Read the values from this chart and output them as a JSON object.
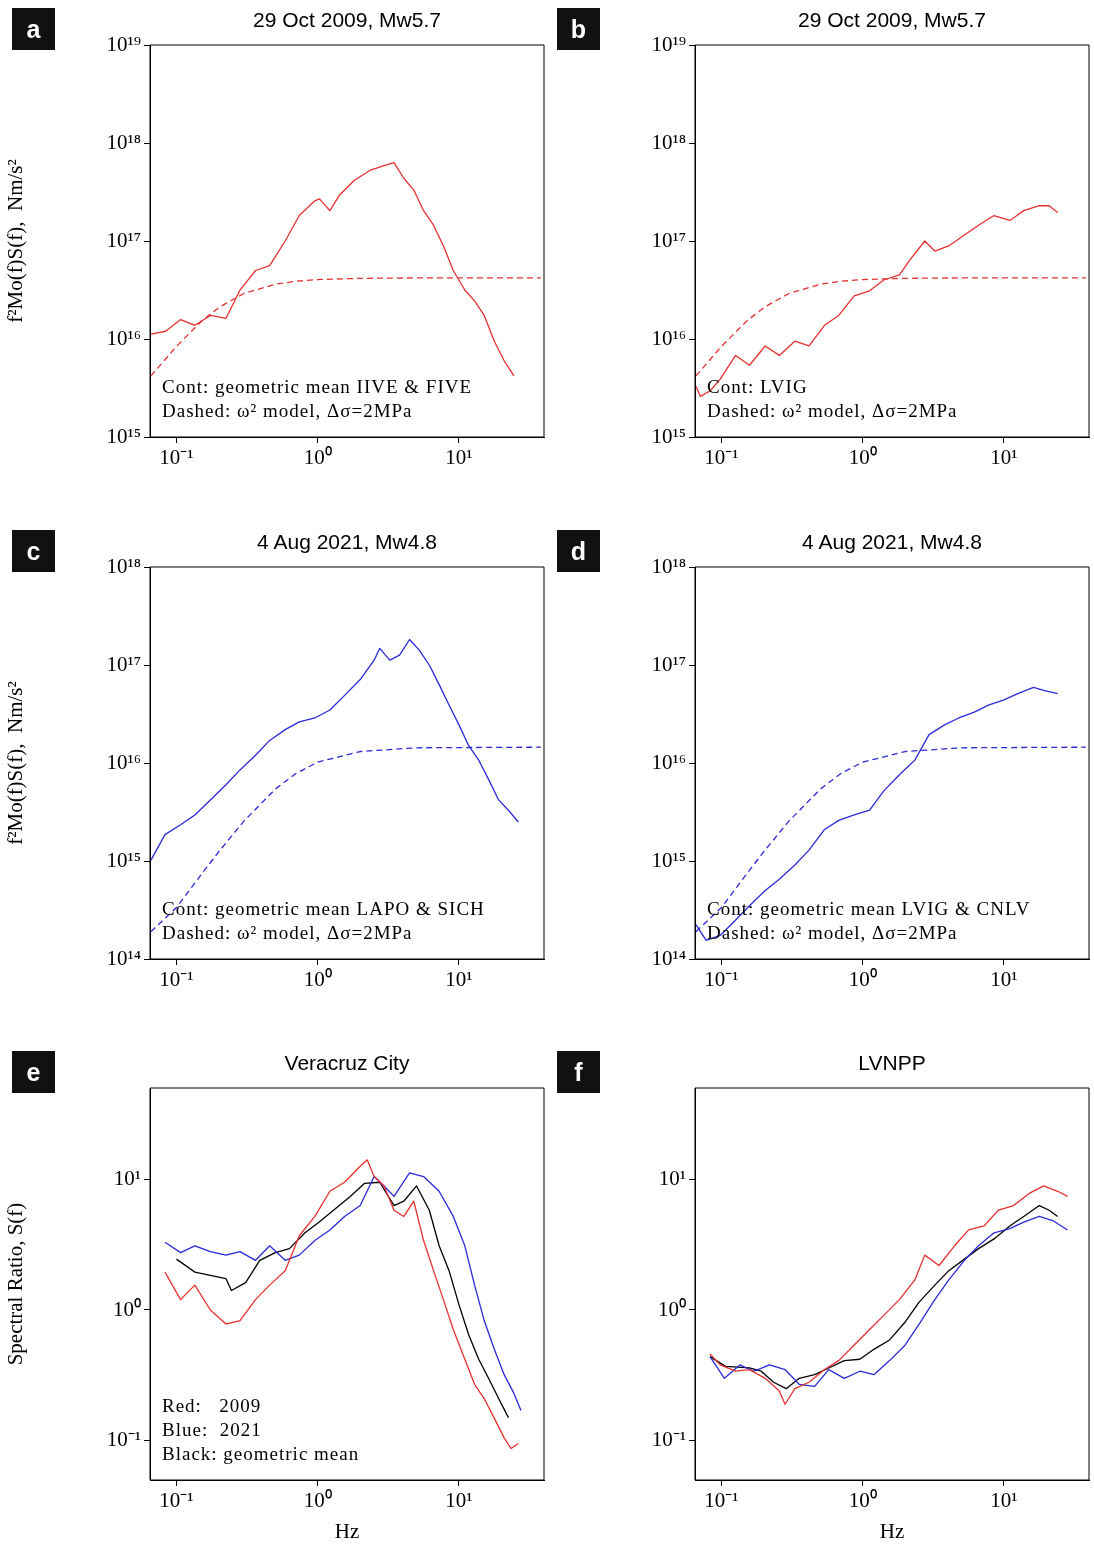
{
  "chart_data": [
    {
      "type": "line",
      "title": "29 Oct 2009, Mw5.7",
      "ylabel": "f²Mo(f)S(f),  Nm/s²",
      "log": "xy",
      "grid": false,
      "legend": false,
      "xlim": [
        0.065,
        40
      ],
      "xticks": [
        {
          "value": 0.1,
          "label": "10⁻¹"
        },
        {
          "value": 1,
          "label": "10⁰"
        },
        {
          "value": 10,
          "label": "10¹"
        }
      ],
      "ylim": [
        1000000000000000.0,
        1e+19
      ],
      "yticks": [
        {
          "value": 1000000000000000.0,
          "label": "10¹⁵"
        },
        {
          "value": 1e+16,
          "label": "10¹⁶"
        },
        {
          "value": 1e+17,
          "label": "10¹⁷"
        },
        {
          "value": 1e+18,
          "label": "10¹⁸"
        },
        {
          "value": 1e+19,
          "label": "10¹⁹"
        }
      ],
      "annotations": [
        "a",
        "Cont: geometric mean IIVE & FIVE",
        "Dashed: ω² model, Δσ=2MPa"
      ],
      "series": [
        {
          "type": "line",
          "color": "#e63030",
          "line_style": "solid",
          "x": [
            0.066,
            0.084,
            0.107,
            0.135,
            0.174,
            0.224,
            0.282,
            0.363,
            0.457,
            0.589,
            0.741,
            0.955,
            1.03,
            1.22,
            1.43,
            1.82,
            2.34,
            2.95,
            3.47,
            4.07,
            4.79,
            5.62,
            6.61,
            7.76,
            9.12,
            11.0,
            12.9,
            15.1,
            17.8,
            20.9,
            24.5
          ],
          "values": [
            1.12e+16,
            1.2e+16,
            1.58e+16,
            1.38e+16,
            1.74e+16,
            1.62e+16,
            3.16e+16,
            5e+16,
            5.6e+16,
            1e+17,
            1.82e+17,
            2.57e+17,
            2.69e+17,
            2.04e+17,
            2.95e+17,
            4.17e+17,
            5.25e+17,
            5.89e+17,
            6.31e+17,
            4.37e+17,
            3.31e+17,
            2.04e+17,
            1.45e+17,
            8.9e+16,
            5e+16,
            3.16e+16,
            2.45e+16,
            1.74e+16,
            9500000000000000.0,
            6000000000000000.0,
            4200000000000000.0
          ]
        },
        {
          "type": "line",
          "color": "#e63030",
          "line_style": "dashed",
          "x": [
            0.066,
            0.1,
            0.15,
            0.2,
            0.3,
            0.5,
            0.7,
            1,
            2,
            5,
            38
          ],
          "values": [
            4200000000000000.0,
            8400000000000000.0,
            1.51e+16,
            2.1e+16,
            2.91e+16,
            3.62e+16,
            3.88e+16,
            4.04e+16,
            4.16e+16,
            4.2e+16,
            4.2e+16
          ]
        }
      ]
    },
    {
      "type": "line",
      "title": "29 Oct 2009, Mw5.7",
      "log": "xy",
      "grid": false,
      "legend": false,
      "xlim": [
        0.065,
        40
      ],
      "xticks": [
        {
          "value": 0.1,
          "label": "10⁻¹"
        },
        {
          "value": 1,
          "label": "10⁰"
        },
        {
          "value": 10,
          "label": "10¹"
        }
      ],
      "ylim": [
        1000000000000000.0,
        1e+19
      ],
      "yticks": [
        {
          "value": 1000000000000000.0,
          "label": "10¹⁵"
        },
        {
          "value": 1e+16,
          "label": "10¹⁶"
        },
        {
          "value": 1e+17,
          "label": "10¹⁷"
        },
        {
          "value": 1e+18,
          "label": "10¹⁸"
        },
        {
          "value": 1e+19,
          "label": "10¹⁹"
        }
      ],
      "annotations": [
        "b",
        "Cont: LVIG",
        "Dashed: ω² model, Δσ=2MPa"
      ],
      "series": [
        {
          "type": "line",
          "color": "#e63030",
          "line_style": "solid",
          "x": [
            0.066,
            0.071,
            0.083,
            0.098,
            0.126,
            0.158,
            0.204,
            0.257,
            0.331,
            0.417,
            0.537,
            0.676,
            0.871,
            1.12,
            1.41,
            1.82,
            2.14,
            2.75,
            3.24,
            4.07,
            5.25,
            6.61,
            8.51,
            11.0,
            13.8,
            17.8,
            20.9,
            24.0
          ],
          "values": [
            3300000000000000.0,
            2600000000000000.0,
            2950000000000000.0,
            3900000000000000.0,
            6800000000000000.0,
            5400000000000000.0,
            8500000000000000.0,
            6800000000000000.0,
            9500000000000000.0,
            8500000000000000.0,
            1.38e+16,
            1.74e+16,
            2.75e+16,
            3.1e+16,
            4e+16,
            4.5e+16,
            6.3e+16,
            1e+17,
            7.9e+16,
            8.9e+16,
            1.15e+17,
            1.45e+17,
            1.82e+17,
            1.62e+17,
            2.04e+17,
            2.29e+17,
            2.29e+17,
            1.95e+17
          ]
        },
        {
          "type": "line",
          "color": "#e63030",
          "line_style": "dashed",
          "x": [
            0.066,
            0.1,
            0.15,
            0.2,
            0.3,
            0.5,
            0.7,
            1,
            2,
            5,
            38
          ],
          "values": [
            4200000000000000.0,
            8400000000000000.0,
            1.51e+16,
            2.1e+16,
            2.91e+16,
            3.62e+16,
            3.88e+16,
            4.04e+16,
            4.16e+16,
            4.2e+16,
            4.2e+16
          ]
        }
      ]
    },
    {
      "type": "line",
      "title": "4 Aug 2021, Mw4.8",
      "ylabel": "f²Mo(f)S(f),  Nm/s²",
      "log": "xy",
      "grid": false,
      "legend": false,
      "xlim": [
        0.065,
        40
      ],
      "xticks": [
        {
          "value": 0.1,
          "label": "10⁻¹"
        },
        {
          "value": 1,
          "label": "10⁰"
        },
        {
          "value": 10,
          "label": "10¹"
        }
      ],
      "ylim": [
        100000000000000.0,
        1e+18
      ],
      "yticks": [
        {
          "value": 100000000000000.0,
          "label": "10¹⁴"
        },
        {
          "value": 1000000000000000.0,
          "label": "10¹⁵"
        },
        {
          "value": 1e+16,
          "label": "10¹⁶"
        },
        {
          "value": 1e+17,
          "label": "10¹⁷"
        },
        {
          "value": 1e+18,
          "label": "10¹⁸"
        }
      ],
      "annotations": [
        "c",
        "Cont: geometric mean LAPO & SICH",
        "Dashed: ω² model, Δσ=2MPa"
      ],
      "series": [
        {
          "type": "line",
          "color": "#2a2ad8",
          "line_style": "solid",
          "x": [
            0.066,
            0.083,
            0.107,
            0.135,
            0.174,
            0.224,
            0.282,
            0.363,
            0.457,
            0.589,
            0.741,
            0.955,
            1.22,
            1.55,
            2.0,
            2.51,
            2.75,
            3.24,
            3.8,
            4.47,
            5.25,
            6.17,
            7.24,
            8.51,
            10,
            11.7,
            13.8,
            16.2,
            19.1,
            22.4,
            26.3
          ],
          "values": [
            1020000000000000.0,
            1860000000000000.0,
            2340000000000000.0,
            2950000000000000.0,
            4200000000000000.0,
            6000000000000000.0,
            8500000000000000.0,
            1.2e+16,
            1.7e+16,
            2.19e+16,
            2.63e+16,
            2.88e+16,
            3.47e+16,
            4.9e+16,
            7.1e+16,
            1.12e+17,
            1.48e+17,
            1.12e+17,
            1.26e+17,
            1.82e+17,
            1.41e+17,
            1e+17,
            6.3e+16,
            3.9e+16,
            2.45e+16,
            1.51e+16,
            1.07e+16,
            6800000000000000.0,
            4200000000000000.0,
            3300000000000000.0,
            2500000000000000.0
          ]
        },
        {
          "type": "line",
          "color": "#2a2ad8",
          "line_style": "dashed",
          "x": [
            0.066,
            0.1,
            0.15,
            0.2,
            0.3,
            0.5,
            0.7,
            1,
            2,
            5,
            38
          ],
          "values": [
            190000000000000.0,
            335000000000000.0,
            730000000000000.0,
            1250000000000000.0,
            2550000000000000.0,
            5400000000000000.0,
            7800000000000000.0,
            1.02e+16,
            1.31e+16,
            1.43e+16,
            1.45e+16
          ]
        }
      ]
    },
    {
      "type": "line",
      "title": "4 Aug 2021, Mw4.8",
      "log": "xy",
      "grid": false,
      "legend": false,
      "xlim": [
        0.065,
        40
      ],
      "xticks": [
        {
          "value": 0.1,
          "label": "10⁻¹"
        },
        {
          "value": 1,
          "label": "10⁰"
        },
        {
          "value": 10,
          "label": "10¹"
        }
      ],
      "ylim": [
        100000000000000.0,
        1e+18
      ],
      "yticks": [
        {
          "value": 100000000000000.0,
          "label": "10¹⁴"
        },
        {
          "value": 1000000000000000.0,
          "label": "10¹⁵"
        },
        {
          "value": 1e+16,
          "label": "10¹⁶"
        },
        {
          "value": 1e+17,
          "label": "10¹⁷"
        },
        {
          "value": 1e+18,
          "label": "10¹⁸"
        }
      ],
      "annotations": [
        "d",
        "Cont: geometric mean LVIG & CNLV",
        "Dashed: ω² model, Δσ=2MPa"
      ],
      "series": [
        {
          "type": "line",
          "color": "#2a2ad8",
          "line_style": "solid",
          "x": [
            0.066,
            0.078,
            0.098,
            0.126,
            0.158,
            0.204,
            0.257,
            0.331,
            0.417,
            0.537,
            0.676,
            0.871,
            1.12,
            1.41,
            1.82,
            2.34,
            2.95,
            3.8,
            4.79,
            6.17,
            7.76,
            10,
            12.9,
            16.2,
            19.1,
            24.0
          ],
          "values": [
            224000000000000.0,
            155000000000000.0,
            174000000000000.0,
            250000000000000.0,
            350000000000000.0,
            500000000000000.0,
            650000000000000.0,
            910000000000000.0,
            1290000000000000.0,
            2100000000000000.0,
            2600000000000000.0,
            2950000000000000.0,
            3300000000000000.0,
            5200000000000000.0,
            7600000000000000.0,
            1.07e+16,
            1.95e+16,
            2.45e+16,
            2.88e+16,
            3.3e+16,
            3.9e+16,
            4.4e+16,
            5.2e+16,
            5.9e+16,
            5.5e+16,
            5.1e+16
          ]
        },
        {
          "type": "line",
          "color": "#2a2ad8",
          "line_style": "dashed",
          "x": [
            0.066,
            0.1,
            0.15,
            0.2,
            0.3,
            0.5,
            0.7,
            1,
            2,
            5,
            38
          ],
          "values": [
            190000000000000.0,
            335000000000000.0,
            730000000000000.0,
            1250000000000000.0,
            2550000000000000.0,
            5400000000000000.0,
            7800000000000000.0,
            1.02e+16,
            1.31e+16,
            1.43e+16,
            1.45e+16
          ]
        }
      ]
    },
    {
      "type": "line",
      "title": "Veracruz City",
      "xlabel": "Hz",
      "ylabel": "Spectral Ratio, S(f)",
      "log": "xy",
      "grid": false,
      "legend": false,
      "xlim": [
        0.065,
        40
      ],
      "xticks": [
        {
          "value": 0.1,
          "label": "10⁻¹"
        },
        {
          "value": 1,
          "label": "10⁰"
        },
        {
          "value": 10,
          "label": "10¹"
        }
      ],
      "ylim": [
        0.05,
        50
      ],
      "yticks": [
        {
          "value": 0.1,
          "label": "10⁻¹"
        },
        {
          "value": 1,
          "label": "10⁰"
        },
        {
          "value": 10,
          "label": "10¹"
        }
      ],
      "annotations": [
        "e",
        "Red:   2009",
        "Blue:  2021",
        "Black: geometric mean"
      ],
      "series": [
        {
          "type": "line",
          "color": "#e63030",
          "line_style": "solid",
          "x": [
            0.083,
            0.107,
            0.135,
            0.174,
            0.224,
            0.282,
            0.363,
            0.457,
            0.589,
            0.741,
            0.955,
            1.22,
            1.55,
            2.0,
            2.24,
            2.51,
            2.95,
            3.47,
            4.07,
            4.79,
            5.62,
            6.61,
            7.76,
            9.12,
            11.0,
            12.9,
            15.1,
            17.8,
            20.9,
            23.4,
            26.3
          ],
          "values": [
            1.95,
            1.2,
            1.55,
            1.0,
            0.78,
            0.83,
            1.2,
            1.55,
            2.0,
            3.7,
            5.2,
            8.1,
            9.5,
            12.6,
            14.1,
            10.5,
            8.9,
            5.8,
            5.2,
            6.8,
            3.4,
            2.0,
            1.2,
            0.71,
            0.42,
            0.27,
            0.21,
            0.148,
            0.105,
            0.087,
            0.095
          ]
        },
        {
          "type": "line",
          "color": "#2a2ad8",
          "line_style": "solid",
          "x": [
            0.083,
            0.107,
            0.135,
            0.174,
            0.224,
            0.282,
            0.363,
            0.457,
            0.589,
            0.741,
            0.955,
            1.22,
            1.55,
            2.0,
            2.51,
            2.95,
            3.47,
            4.47,
            5.62,
            7.24,
            9.12,
            11.0,
            12.9,
            15.1,
            17.8,
            20.9,
            24.5,
            27.5
          ],
          "values": [
            3.3,
            2.75,
            3.1,
            2.8,
            2.63,
            2.8,
            2.4,
            3.1,
            2.4,
            2.63,
            3.4,
            4.1,
            5.2,
            6.3,
            10.5,
            8.9,
            7.4,
            11.2,
            10.5,
            8.1,
            5.2,
            3.1,
            1.55,
            0.83,
            0.5,
            0.32,
            0.23,
            0.17
          ]
        },
        {
          "type": "line",
          "color": "#000000",
          "line_style": "solid",
          "x": [
            0.1,
            0.135,
            0.224,
            0.245,
            0.309,
            0.389,
            0.501,
            0.631,
            0.813,
            1.02,
            1.32,
            1.7,
            2.14,
            2.75,
            3.47,
            4.07,
            5.01,
            6.17,
            7.24,
            8.51,
            10,
            11.7,
            13.8,
            16.2,
            19.1,
            22.4
          ],
          "values": [
            2.45,
            1.95,
            1.74,
            1.41,
            1.62,
            2.4,
            2.75,
            2.95,
            3.9,
            4.7,
            5.9,
            7.4,
            9.3,
            9.5,
            6.3,
            6.8,
            8.9,
            5.8,
            3.1,
            2.0,
            1.1,
            0.65,
            0.42,
            0.3,
            0.21,
            0.15
          ]
        }
      ]
    },
    {
      "type": "line",
      "title": "LVNPP",
      "xlabel": "Hz",
      "log": "xy",
      "grid": false,
      "legend": false,
      "xlim": [
        0.065,
        40
      ],
      "xticks": [
        {
          "value": 0.1,
          "label": "10⁻¹"
        },
        {
          "value": 1,
          "label": "10⁰"
        },
        {
          "value": 10,
          "label": "10¹"
        }
      ],
      "ylim": [
        0.05,
        50
      ],
      "yticks": [
        {
          "value": 0.1,
          "label": "10⁻¹"
        },
        {
          "value": 1,
          "label": "10⁰"
        },
        {
          "value": 10,
          "label": "10¹"
        }
      ],
      "annotations": [
        "f"
      ],
      "series": [
        {
          "type": "line",
          "color": "#e63030",
          "line_style": "solid",
          "x": [
            0.083,
            0.098,
            0.126,
            0.158,
            0.204,
            0.257,
            0.282,
            0.331,
            0.417,
            0.537,
            0.676,
            0.871,
            1.12,
            1.41,
            1.82,
            2.34,
            2.75,
            3.47,
            4.47,
            5.62,
            7.24,
            9.12,
            11.7,
            15.1,
            19.1,
            24.0,
            28.2
          ],
          "values": [
            0.46,
            0.38,
            0.34,
            0.35,
            0.3,
            0.24,
            0.19,
            0.25,
            0.28,
            0.35,
            0.41,
            0.54,
            0.71,
            0.91,
            1.2,
            1.7,
            2.63,
            2.19,
            3.1,
            4.1,
            4.4,
            5.8,
            6.3,
            7.8,
            8.9,
            8.1,
            7.4
          ]
        },
        {
          "type": "line",
          "color": "#2a2ad8",
          "line_style": "solid",
          "x": [
            0.083,
            0.105,
            0.135,
            0.17,
            0.219,
            0.282,
            0.355,
            0.457,
            0.575,
            0.741,
            0.955,
            1.2,
            1.55,
            2.0,
            2.51,
            3.24,
            4.07,
            5.25,
            6.61,
            8.51,
            11.0,
            13.8,
            17.8,
            22.4,
            28.2
          ],
          "values": [
            0.44,
            0.3,
            0.38,
            0.34,
            0.38,
            0.35,
            0.27,
            0.26,
            0.35,
            0.3,
            0.34,
            0.32,
            0.41,
            0.54,
            0.78,
            1.2,
            1.7,
            2.4,
            3.1,
            3.9,
            4.2,
            4.7,
            5.2,
            4.8,
            4.1
          ]
        },
        {
          "type": "line",
          "color": "#000000",
          "line_style": "solid",
          "x": [
            0.083,
            0.107,
            0.158,
            0.191,
            0.234,
            0.288,
            0.355,
            0.457,
            0.575,
            0.741,
            0.955,
            1.2,
            1.55,
            2.0,
            2.51,
            3.24,
            4.07,
            5.25,
            6.61,
            8.51,
            11.0,
            13.8,
            17.8,
            20.9,
            24.0
          ],
          "values": [
            0.44,
            0.37,
            0.36,
            0.34,
            0.28,
            0.25,
            0.3,
            0.32,
            0.36,
            0.41,
            0.42,
            0.5,
            0.59,
            0.81,
            1.15,
            1.55,
            2.0,
            2.45,
            2.95,
            3.5,
            4.4,
            5.2,
            6.3,
            5.8,
            5.2
          ]
        }
      ]
    }
  ]
}
